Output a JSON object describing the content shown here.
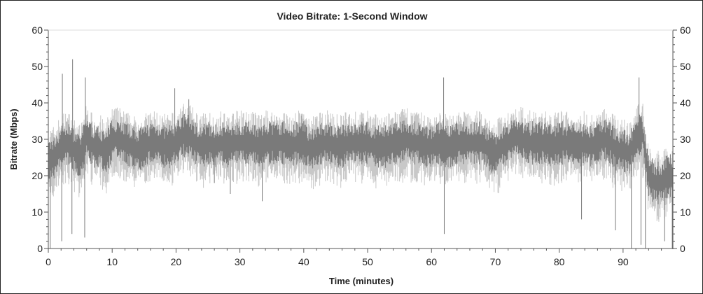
{
  "chart_data": {
    "type": "line",
    "title": "Video Bitrate: 1-Second Window",
    "xlabel": "Time (minutes)",
    "ylabel": "Bitrate (Mbps)",
    "xlim": [
      0,
      97.8
    ],
    "ylim": [
      0,
      60
    ],
    "x_ticks": [
      "0",
      "10",
      "20",
      "30",
      "40",
      "50",
      "60",
      "70",
      "80",
      "90"
    ],
    "y_ticks": [
      "0",
      "10",
      "20",
      "30",
      "40",
      "50",
      "60"
    ],
    "y_axis_right": true,
    "grid": false,
    "colors": {
      "series": "#7a7a7a",
      "envelope": "#c8c8c8",
      "axis": "#555555"
    },
    "series": [
      {
        "x": [
          0,
          1,
          2,
          3,
          4,
          5,
          6,
          7,
          8,
          9,
          10,
          11,
          12,
          13,
          14,
          15,
          16,
          17,
          18,
          19,
          20,
          21,
          22,
          23,
          24,
          25,
          26,
          27,
          28,
          29,
          30,
          31,
          32,
          33,
          34,
          35,
          36,
          37,
          38,
          39,
          40,
          41,
          42,
          43,
          44,
          45,
          46,
          47,
          48,
          49,
          50,
          51,
          52,
          53,
          54,
          55,
          56,
          57,
          58,
          59,
          60,
          61,
          62,
          63,
          64,
          65,
          66,
          67,
          68,
          69,
          70,
          71,
          72,
          73,
          74,
          75,
          76,
          77,
          78,
          79,
          80,
          81,
          82,
          83,
          84,
          85,
          86,
          87,
          88,
          89,
          90,
          91,
          92,
          93,
          94,
          95,
          96,
          97
        ],
        "y": [
          24,
          25,
          28,
          29,
          27,
          25,
          31,
          28,
          28,
          26,
          30,
          30,
          29,
          28,
          27,
          28,
          29,
          29,
          28,
          28,
          29,
          31,
          31,
          29,
          28,
          29,
          28,
          29,
          28,
          29,
          29,
          29,
          29,
          28,
          29,
          29,
          29,
          29,
          28,
          29,
          29,
          27,
          28,
          29,
          29,
          28,
          28,
          29,
          29,
          29,
          29,
          28,
          28,
          28,
          29,
          29,
          30,
          29,
          29,
          28,
          28,
          29,
          28,
          28,
          29,
          29,
          29,
          29,
          29,
          27,
          26,
          28,
          29,
          31,
          30,
          29,
          29,
          29,
          29,
          28,
          29,
          29,
          29,
          28,
          29,
          28,
          29,
          30,
          29,
          27,
          27,
          26,
          30,
          32,
          20,
          18,
          18,
          20
        ]
      }
    ],
    "spikes": [
      {
        "x": 0.3,
        "y": 0
      },
      {
        "x": 2.1,
        "y": 2
      },
      {
        "x": 2.2,
        "y": 48
      },
      {
        "x": 3.7,
        "y": 4
      },
      {
        "x": 3.8,
        "y": 52
      },
      {
        "x": 5.7,
        "y": 3
      },
      {
        "x": 5.8,
        "y": 47
      },
      {
        "x": 19.8,
        "y": 44
      },
      {
        "x": 22,
        "y": 41
      },
      {
        "x": 26,
        "y": 18
      },
      {
        "x": 28.5,
        "y": 15
      },
      {
        "x": 33.5,
        "y": 13
      },
      {
        "x": 39.7,
        "y": 37
      },
      {
        "x": 61.9,
        "y": 47
      },
      {
        "x": 62,
        "y": 4
      },
      {
        "x": 83.5,
        "y": 8
      },
      {
        "x": 88.8,
        "y": 5
      },
      {
        "x": 91.3,
        "y": 0
      },
      {
        "x": 92.5,
        "y": 47
      },
      {
        "x": 92.8,
        "y": 1
      },
      {
        "x": 93.5,
        "y": 0
      },
      {
        "x": 96.5,
        "y": 2
      },
      {
        "x": 97.7,
        "y": 0
      }
    ]
  }
}
